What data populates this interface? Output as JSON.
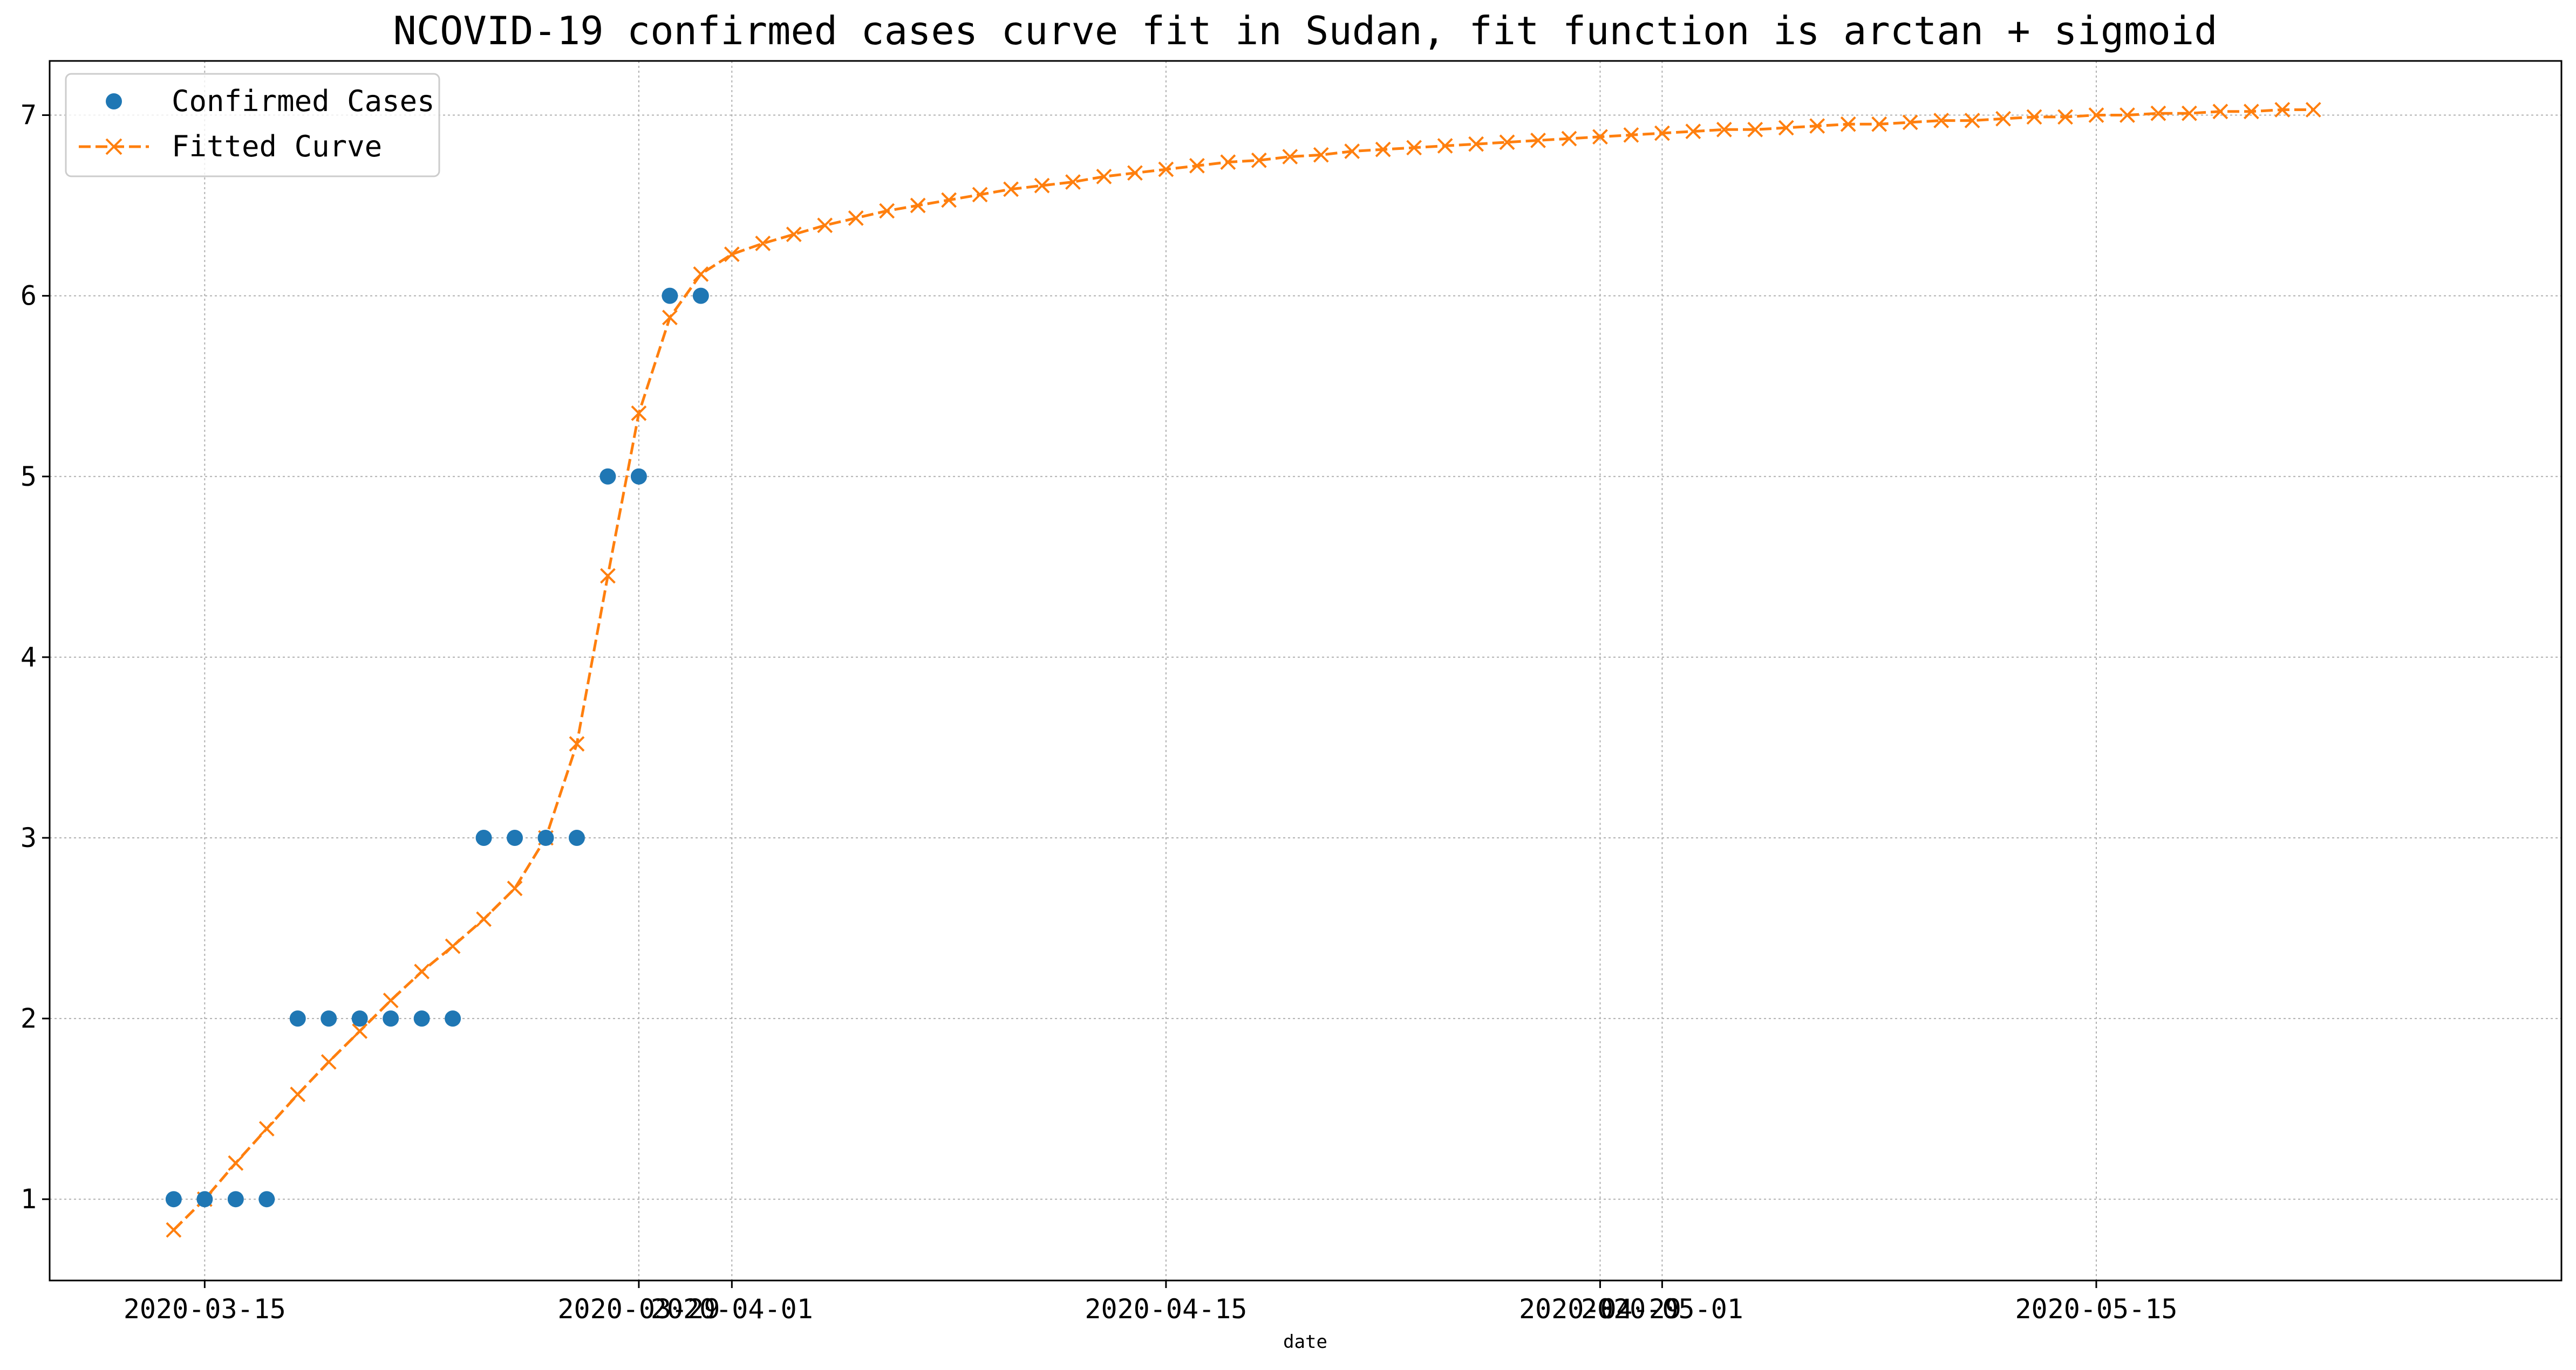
{
  "chart_data": {
    "type": "line",
    "title": "NCOVID-19 confirmed cases curve fit in Sudan, fit function is arctan + sigmoid",
    "xlabel": "date",
    "ylabel": "",
    "grid": true,
    "legend_position": "top-left",
    "xlim": [
      "2020-03-10",
      "2020-05-30"
    ],
    "ylim": [
      0.55,
      7.3
    ],
    "yticks": [
      1,
      2,
      3,
      4,
      5,
      6,
      7
    ],
    "xticks": [
      "2020-03-15",
      "2020-03-29",
      "2020-04-01",
      "2020-04-15",
      "2020-04-29",
      "2020-05-01",
      "2020-05-15"
    ],
    "xtick_labels": [
      "2020-03-15",
      "2020-03-29",
      "2020-04-01",
      "2020-04-15",
      "2020-04-29",
      "2020-05-01",
      "2020-05-15"
    ],
    "series": [
      {
        "name": "Confirmed Cases",
        "style": "points",
        "marker": "circle",
        "color": "#1f77b4",
        "x": [
          "2020-03-14",
          "2020-03-15",
          "2020-03-16",
          "2020-03-17",
          "2020-03-18",
          "2020-03-19",
          "2020-03-20",
          "2020-03-21",
          "2020-03-22",
          "2020-03-23",
          "2020-03-24",
          "2020-03-25",
          "2020-03-26",
          "2020-03-27",
          "2020-03-28",
          "2020-03-29",
          "2020-03-30",
          "2020-03-31"
        ],
        "values": [
          1,
          1,
          1,
          1,
          2,
          2,
          2,
          2,
          2,
          2,
          3,
          3,
          3,
          3,
          5,
          5,
          6,
          6
        ]
      },
      {
        "name": "Fitted Curve",
        "style": "dashed-line",
        "marker": "x",
        "color": "#ff7f0e",
        "start_date": "2020-03-14",
        "values": [
          0.83,
          1.0,
          1.2,
          1.39,
          1.58,
          1.76,
          1.93,
          2.1,
          2.26,
          2.4,
          2.55,
          2.72,
          3.0,
          3.52,
          4.45,
          5.35,
          5.88,
          6.12,
          6.23,
          6.29,
          6.34,
          6.39,
          6.43,
          6.47,
          6.5,
          6.53,
          6.56,
          6.59,
          6.61,
          6.63,
          6.66,
          6.68,
          6.7,
          6.72,
          6.74,
          6.75,
          6.77,
          6.78,
          6.8,
          6.81,
          6.82,
          6.83,
          6.84,
          6.85,
          6.86,
          6.87,
          6.88,
          6.89,
          6.9,
          6.91,
          6.92,
          6.92,
          6.93,
          6.94,
          6.95,
          6.95,
          6.96,
          6.97,
          6.97,
          6.98,
          6.99,
          6.99,
          7.0,
          7.0,
          7.01,
          7.01,
          7.02,
          7.02,
          7.03,
          7.03
        ]
      }
    ]
  }
}
